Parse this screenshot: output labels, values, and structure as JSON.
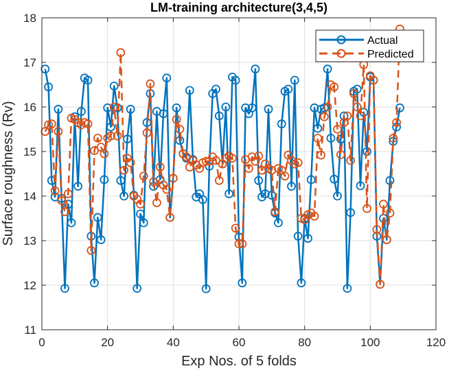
{
  "chart_data": {
    "type": "line",
    "title": "LM-training architecture(3,4,5)",
    "xlabel": "Exp Nos. of 5 folds",
    "ylabel": "Surface roughness (Rv)",
    "xlim": [
      0,
      120
    ],
    "ylim": [
      11,
      18
    ],
    "xticks": [
      0,
      20,
      40,
      60,
      80,
      100,
      120
    ],
    "yticks": [
      11,
      12,
      13,
      14,
      15,
      16,
      17,
      18
    ],
    "grid": true,
    "legend_position": "top-right",
    "series": [
      {
        "name": "Actual",
        "color": "#0072BD",
        "line_style": "solid",
        "marker": "circle",
        "values": [
          16.85,
          16.45,
          14.35,
          13.98,
          15.95,
          13.95,
          11.93,
          13.82,
          13.4,
          15.78,
          14.22,
          15.9,
          16.65,
          16.6,
          13.1,
          12.05,
          13.52,
          13.02,
          14.37,
          15.98,
          15.55,
          16.47,
          15.98,
          14.35,
          14.0,
          15.28,
          15.95,
          14.02,
          11.93,
          13.6,
          13.4,
          15.65,
          16.3,
          14.22,
          15.9,
          14.37,
          15.85,
          16.65,
          13.52,
          14.4,
          15.98,
          15.25,
          14.95,
          14.85,
          16.37,
          14.82,
          13.98,
          14.05,
          13.92,
          11.92,
          14.67,
          16.3,
          16.4,
          15.8,
          14.72,
          16.0,
          14.05,
          16.67,
          16.6,
          13.08,
          12.05,
          15.98,
          15.85,
          15.98,
          16.85,
          14.35,
          13.98,
          14.05,
          15.95,
          14.02,
          13.62,
          13.4,
          15.62,
          16.35,
          16.4,
          14.22,
          16.6,
          13.1,
          12.05,
          13.5,
          13.05,
          14.37,
          15.98,
          15.52,
          15.95,
          15.98,
          16.85,
          15.3,
          14.38,
          14.0,
          15.28,
          15.8,
          11.93,
          13.63,
          16.35,
          16.4,
          14.23,
          15.88,
          15.0,
          16.67,
          16.6,
          13.1,
          12.02,
          13.5,
          13.02,
          14.35,
          15.23,
          15.55,
          15.98
        ]
      },
      {
        "name": "Predicted",
        "color": "#D95319",
        "line_style": "dashed",
        "marker": "circle",
        "values": [
          15.45,
          15.6,
          15.62,
          14.12,
          15.45,
          13.9,
          13.65,
          14.05,
          15.75,
          15.72,
          15.65,
          15.6,
          15.65,
          15.62,
          12.78,
          15.02,
          15.3,
          15.1,
          14.95,
          15.3,
          15.35,
          16.0,
          15.35,
          17.22,
          14.58,
          14.85,
          14.75,
          14.0,
          13.93,
          13.82,
          14.45,
          15.42,
          16.52,
          14.32,
          13.85,
          14.65,
          14.25,
          14.15,
          13.52,
          14.4,
          15.72,
          15.5,
          14.95,
          14.88,
          14.65,
          14.8,
          14.7,
          14.62,
          14.75,
          14.78,
          14.78,
          14.88,
          14.8,
          14.35,
          14.72,
          14.85,
          14.9,
          14.85,
          13.28,
          12.93,
          12.93,
          14.82,
          14.62,
          14.88,
          14.78,
          14.9,
          14.58,
          14.72,
          14.62,
          14.58,
          13.65,
          14.62,
          14.58,
          14.45,
          14.92,
          14.8,
          14.72,
          14.75,
          13.5,
          13.47,
          13.58,
          13.62,
          13.55,
          15.3,
          14.92,
          15.78,
          16.0,
          16.5,
          16.45,
          15.5,
          14.93,
          15.65,
          15.8,
          14.8,
          16.3,
          16.0,
          15.8,
          16.95,
          13.72,
          16.7,
          16.6,
          13.25,
          12.02,
          13.82,
          13.02,
          13.62,
          15.3,
          15.65,
          17.75
        ]
      }
    ]
  }
}
